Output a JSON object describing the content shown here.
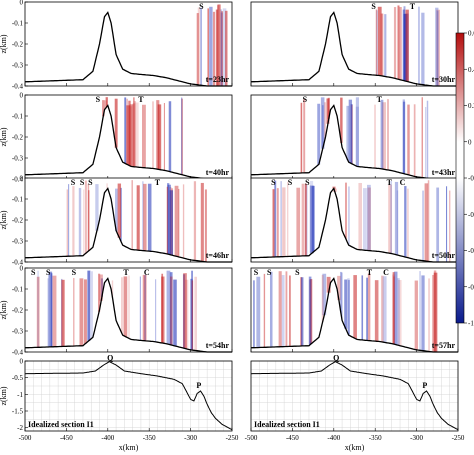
{
  "chart_data": {
    "type": "heatmap",
    "xlabel": "x(km)",
    "ylabel": "z(km)",
    "colorbar": {
      "ticks": [
        "0.6",
        "0.4",
        "0.2",
        "0",
        "-0.2",
        "-0.4",
        "-0.6",
        "-0.8",
        "-1"
      ],
      "range": [
        -1,
        0.6
      ],
      "colors": {
        "positive": "#c41414",
        "zero": "#ffffff",
        "negative": "#1428b4"
      }
    },
    "panels": [
      {
        "time_label": "t=23hr",
        "xlim": [
          -500,
          -250
        ],
        "ylim": [
          -0.4,
          0
        ],
        "wave_labels": [
          {
            "text": "S",
            "x": -287
          }
        ]
      },
      {
        "time_label": "t=30hr",
        "xlim": [
          -500,
          -250
        ],
        "ylim": [
          -0.4,
          0
        ],
        "wave_labels": [
          {
            "text": "S",
            "x": -352
          },
          {
            "text": "T",
            "x": -305
          }
        ]
      },
      {
        "time_label": "t=40hr",
        "xlim": [
          -500,
          -250
        ],
        "ylim": [
          -0.4,
          0
        ],
        "wave_labels": [
          {
            "text": "S",
            "x": -412
          },
          {
            "text": "T",
            "x": -360
          }
        ]
      },
      {
        "time_label": "t=43hr",
        "xlim": [
          -500,
          -250
        ],
        "ylim": [
          -0.4,
          0
        ],
        "wave_labels": [
          {
            "text": "S",
            "x": -435
          },
          {
            "text": "T",
            "x": -345
          }
        ]
      },
      {
        "time_label": "t=46hr",
        "xlim": [
          -500,
          -250
        ],
        "ylim": [
          -0.4,
          0
        ],
        "wave_labels": [
          {
            "text": "S",
            "x": -442
          },
          {
            "text": "S",
            "x": -431
          },
          {
            "text": "S",
            "x": -421
          },
          {
            "text": "T",
            "x": -340
          }
        ]
      },
      {
        "time_label": "t=50hr",
        "xlim": [
          -500,
          -250
        ],
        "ylim": [
          -0.4,
          0
        ],
        "wave_labels": [
          {
            "text": "S",
            "x": -473
          },
          {
            "text": "S",
            "x": -453
          },
          {
            "text": "S",
            "x": -432
          },
          {
            "text": "T",
            "x": -333
          },
          {
            "text": "C",
            "x": -317
          }
        ]
      },
      {
        "time_label": "t=54hr",
        "xlim": [
          -500,
          -250
        ],
        "ylim": [
          -0.4,
          0
        ],
        "wave_labels": [
          {
            "text": "S",
            "x": -490
          },
          {
            "text": "S",
            "x": -472
          },
          {
            "text": "S",
            "x": -441
          },
          {
            "text": "T",
            "x": -378
          },
          {
            "text": "C",
            "x": -353
          }
        ]
      },
      {
        "time_label": "t=57hr",
        "xlim": [
          -500,
          -250
        ],
        "ylim": [
          -0.4,
          0
        ],
        "wave_labels": [
          {
            "text": "S",
            "x": -494
          },
          {
            "text": "S",
            "x": -478
          },
          {
            "text": "S",
            "x": -444
          },
          {
            "text": "T",
            "x": -357
          },
          {
            "text": "C",
            "x": -337
          }
        ]
      }
    ],
    "bathymetry_panels": [
      {
        "label": "Idealized section I1",
        "xlim": [
          -500,
          -250
        ],
        "ylim": [
          -2.1,
          0
        ],
        "points": [
          {
            "text": "Q",
            "x": -397,
            "z": -0.02
          },
          {
            "text": "P",
            "x": -290,
            "z": -0.9
          }
        ],
        "depth_profile": {
          "x": [
            -500,
            -430,
            -415,
            -405,
            -398,
            -390,
            -380,
            -360,
            -340,
            -320,
            -310,
            -300,
            -296,
            -292,
            -288,
            -284,
            -280,
            -275,
            -270,
            -262,
            -250
          ],
          "z": [
            -0.38,
            -0.36,
            -0.3,
            -0.12,
            -0.02,
            -0.12,
            -0.3,
            -0.38,
            -0.45,
            -0.55,
            -0.68,
            -1.15,
            -1.2,
            -0.97,
            -0.9,
            -1.05,
            -1.3,
            -1.55,
            -1.72,
            -1.9,
            -2.06
          ]
        }
      },
      {
        "label": "Idealized section I1",
        "xlim": [
          -500,
          -250
        ],
        "ylim": [
          -2.1,
          0
        ],
        "points": [
          {
            "text": "Q",
            "x": -397,
            "z": -0.02
          },
          {
            "text": "P",
            "x": -290,
            "z": -0.9
          }
        ],
        "depth_profile": {
          "x": [
            -500,
            -430,
            -415,
            -405,
            -398,
            -390,
            -380,
            -360,
            -340,
            -320,
            -310,
            -300,
            -296,
            -292,
            -288,
            -284,
            -280,
            -275,
            -270,
            -262,
            -250
          ],
          "z": [
            -0.38,
            -0.36,
            -0.3,
            -0.12,
            -0.02,
            -0.12,
            -0.3,
            -0.38,
            -0.45,
            -0.55,
            -0.68,
            -1.15,
            -1.2,
            -0.97,
            -0.9,
            -1.05,
            -1.3,
            -1.55,
            -1.72,
            -1.9,
            -2.06
          ]
        }
      }
    ],
    "yticks_top": [
      "0",
      "-0.1",
      "-0.2",
      "-0.3",
      "-0.4"
    ],
    "yticks_bottom": [
      "0",
      "-0.5",
      "-1",
      "-1.5",
      "-2"
    ],
    "xticks": [
      "-500",
      "-450",
      "-400",
      "-350",
      "-300",
      "-250"
    ]
  }
}
